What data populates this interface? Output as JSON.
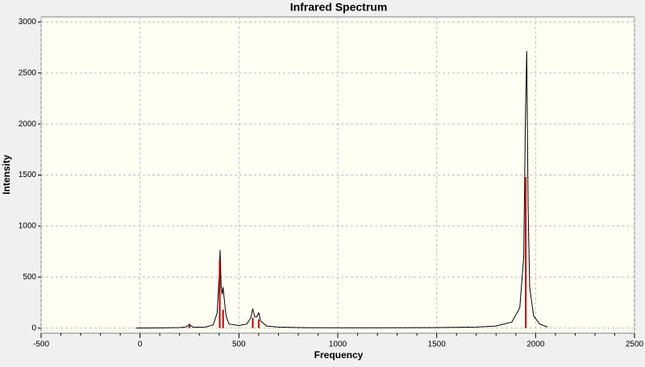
{
  "chart_data": {
    "type": "line",
    "title": "Infrared Spectrum",
    "x_label": "Frequency",
    "y_label": "Intensity",
    "xlim": [
      -500,
      2500
    ],
    "ylim": [
      -50,
      3050
    ],
    "xticks": [
      -500,
      0,
      500,
      1000,
      1500,
      2000,
      2500
    ],
    "yticks": [
      0,
      500,
      1000,
      1500,
      2000,
      2500,
      3000
    ],
    "grid": true,
    "spectrum": {
      "color": "#000000",
      "x": [
        -20,
        100,
        200,
        230,
        245,
        250,
        255,
        270,
        330,
        370,
        390,
        400,
        405,
        410,
        415,
        420,
        425,
        435,
        450,
        500,
        540,
        560,
        570,
        580,
        590,
        600,
        610,
        640,
        700,
        800,
        1000,
        1200,
        1500,
        1700,
        1800,
        1880,
        1920,
        1940,
        1948,
        1955,
        1962,
        1970,
        1990,
        2020,
        2060
      ],
      "values": [
        0,
        2,
        5,
        10,
        25,
        40,
        25,
        8,
        10,
        30,
        150,
        500,
        765,
        420,
        330,
        400,
        300,
        120,
        40,
        25,
        40,
        100,
        190,
        110,
        110,
        150,
        70,
        20,
        10,
        5,
        3,
        3,
        5,
        10,
        20,
        60,
        200,
        700,
        2000,
        2715,
        1200,
        400,
        120,
        40,
        10
      ]
    },
    "sticks": {
      "color": "#c00000",
      "x": [
        250,
        403,
        420,
        570,
        600,
        1950
      ],
      "values": [
        30,
        670,
        180,
        100,
        85,
        1480
      ]
    }
  }
}
